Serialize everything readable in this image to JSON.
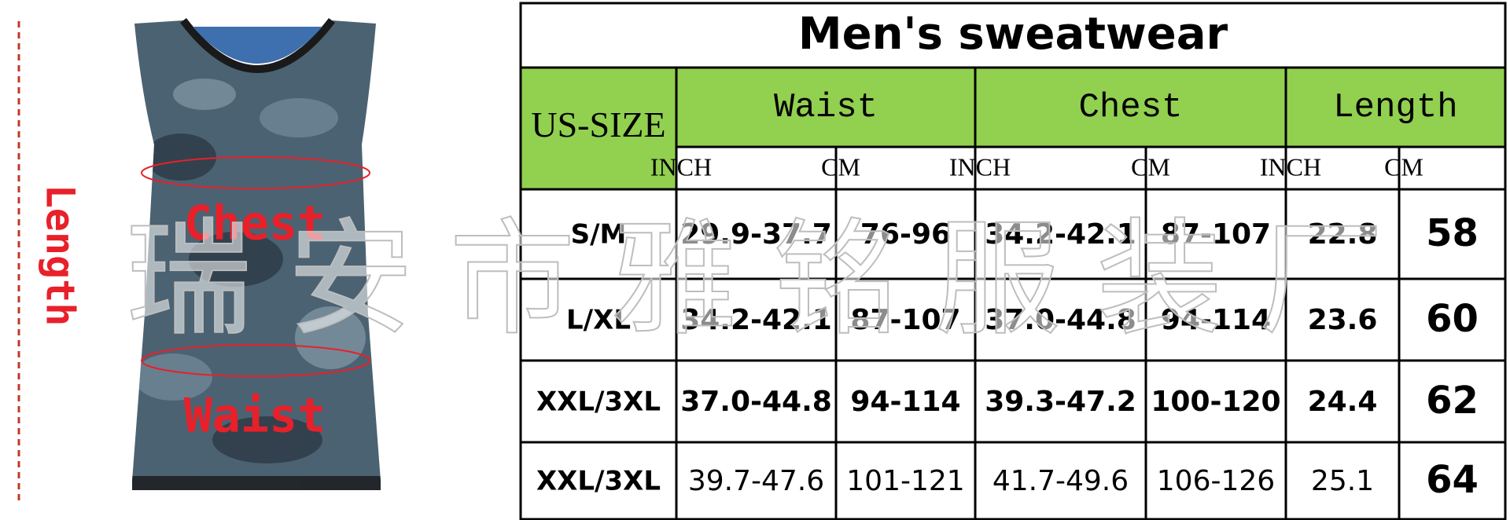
{
  "image": {
    "side_label": "Length",
    "chest_label": "Chest",
    "waist_label": "Waist"
  },
  "watermark": "瑞安市雅铭服装厂",
  "table": {
    "title": "Men's sweatwear",
    "size_header": "US-SIZE",
    "groups": [
      "Waist",
      "Chest",
      "Length"
    ],
    "units": [
      "INCH",
      "CM",
      "INCH",
      "CM",
      "INCH",
      "CM"
    ],
    "rows": [
      [
        "S/M",
        "29.9-37.7",
        "76-96",
        "34.2-42.1",
        "87-107",
        "22.8",
        "58"
      ],
      [
        "L/XL",
        "34.2-42.1",
        "87-107",
        "37.0-44.8",
        "94-114",
        "23.6",
        "60"
      ],
      [
        "XXL/3XL",
        "37.0-44.8",
        "94-114",
        "39.3-47.2",
        "100-120",
        "24.4",
        "62"
      ],
      [
        "XXL/3XL",
        "39.7-47.6",
        "101-121",
        "41.7-49.6",
        "106-126",
        "25.1",
        "64"
      ]
    ]
  }
}
